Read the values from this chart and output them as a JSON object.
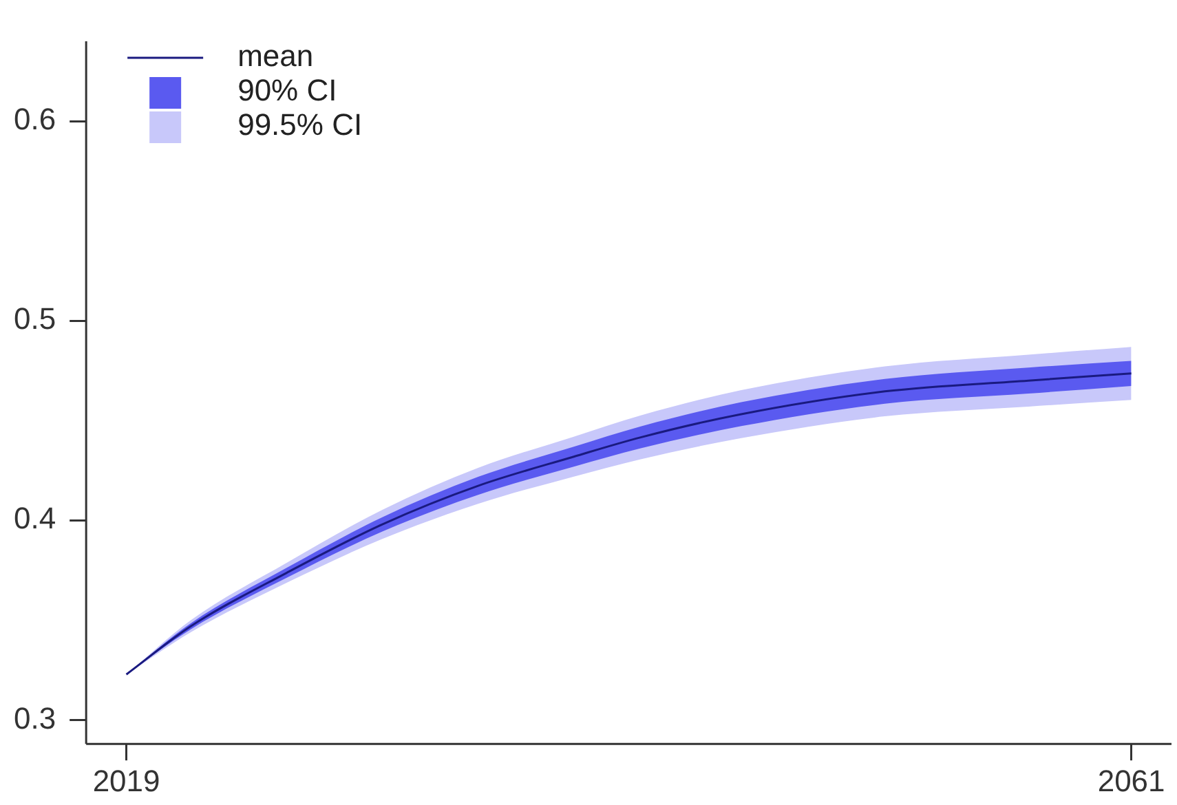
{
  "chart_data": {
    "type": "line",
    "x": [
      2019,
      2021.7,
      2025.7,
      2029.7,
      2033.7,
      2037.7,
      2040.5,
      2044.7,
      2050.7,
      2056.7,
      2061
    ],
    "series": [
      {
        "name": "99.5% CI",
        "color": "#c8c8fa",
        "values": [
          null,
          null,
          null,
          null,
          null,
          null,
          null,
          null,
          null,
          null,
          null
        ],
        "lower": [
          0.3228,
          0.344,
          0.3687,
          0.3907,
          0.4083,
          0.4219,
          0.4306,
          0.4412,
          0.4521,
          0.457,
          0.4603
        ],
        "upper": [
          0.3228,
          0.35,
          0.3787,
          0.4053,
          0.4263,
          0.4419,
          0.4526,
          0.4652,
          0.4771,
          0.483,
          0.4869
        ]
      },
      {
        "name": "90% CI",
        "color": "#5a5af0",
        "values": [
          null,
          null,
          null,
          null,
          null,
          null,
          null,
          null,
          null,
          null,
          null
        ],
        "lower": [
          0.3228,
          0.3455,
          0.3712,
          0.3944,
          0.4128,
          0.4269,
          0.4361,
          0.4472,
          0.4584,
          0.4635,
          0.4673
        ],
        "upper": [
          0.3228,
          0.3485,
          0.3762,
          0.4016,
          0.4218,
          0.4369,
          0.4471,
          0.4592,
          0.4708,
          0.4765,
          0.4799
        ]
      },
      {
        "name": "mean",
        "color": "#1a1a80",
        "values": [
          0.3228,
          0.347,
          0.3737,
          0.398,
          0.4173,
          0.4319,
          0.4416,
          0.4532,
          0.4646,
          0.47,
          0.4736
        ]
      }
    ],
    "xlim": [
      2017.32,
      2062.68
    ],
    "xticks": [
      2019,
      2061
    ],
    "ylim": [
      0.288,
      0.64
    ],
    "yticks": [
      0.3,
      0.4,
      0.5,
      0.6
    ],
    "grid": false,
    "legend": "top left",
    "marker": "none",
    "line_style": "solid"
  }
}
